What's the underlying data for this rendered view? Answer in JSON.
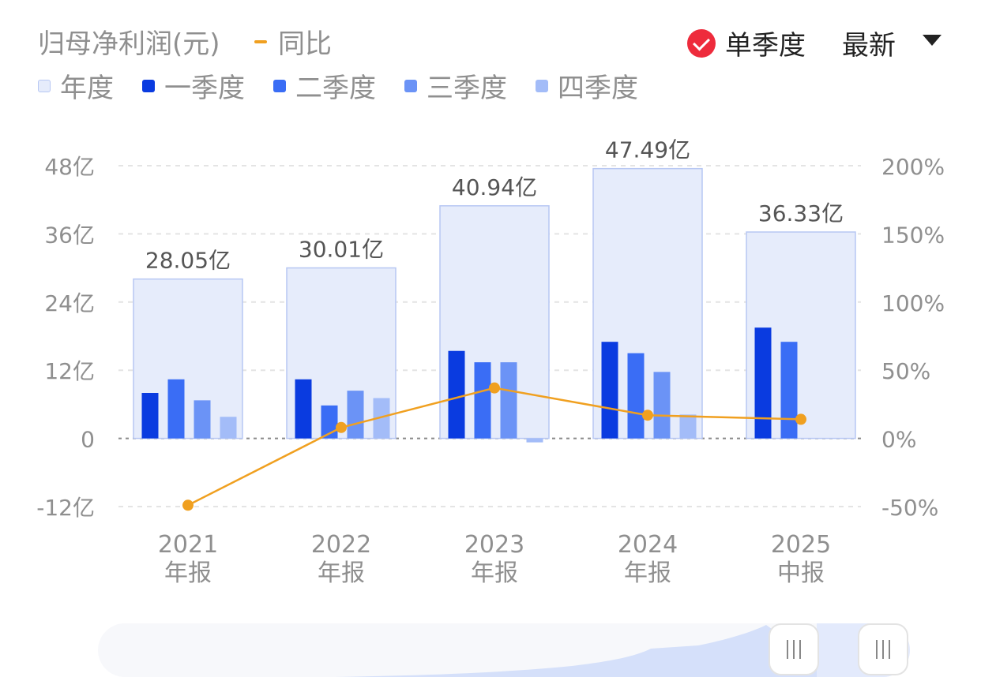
{
  "header": {
    "title": "归母净利润(元)",
    "yoy_label": "同比",
    "season_toggle": "单季度",
    "sort_select": "最新"
  },
  "legend": [
    {
      "label": "年度",
      "color": "#e6ecfb"
    },
    {
      "label": "一季度",
      "color": "#0a3be0"
    },
    {
      "label": "二季度",
      "color": "#3a6df5"
    },
    {
      "label": "三季度",
      "color": "#6b93f6"
    },
    {
      "label": "四季度",
      "color": "#a3bcf8"
    }
  ],
  "colors": {
    "annual_fill": "#e6ecfb",
    "annual_stroke": "#b7c7f3",
    "q1": "#0a3be0",
    "q2": "#3a6df5",
    "q3": "#6b93f6",
    "q4": "#a3bcf8",
    "yoy": "#f0a020"
  },
  "chart_data": {
    "type": "bar",
    "categories": [
      {
        "year": "2021",
        "period": "年报"
      },
      {
        "year": "2022",
        "period": "年报"
      },
      {
        "year": "2023",
        "period": "年报"
      },
      {
        "year": "2024",
        "period": "年报"
      },
      {
        "year": "2025",
        "period": "中报"
      }
    ],
    "annual": [
      28.05,
      30.01,
      40.94,
      47.49,
      36.33
    ],
    "annual_labels": [
      "28.05亿",
      "30.01亿",
      "40.94亿",
      "47.49亿",
      "36.33亿"
    ],
    "series": [
      {
        "name": "一季度",
        "values": [
          8.0,
          10.4,
          15.4,
          17.0,
          19.5
        ]
      },
      {
        "name": "二季度",
        "values": [
          10.4,
          5.8,
          13.4,
          15.0,
          17.0
        ]
      },
      {
        "name": "三季度",
        "values": [
          6.7,
          8.4,
          13.4,
          11.7,
          null
        ]
      },
      {
        "name": "四季度",
        "values": [
          3.8,
          7.1,
          -0.7,
          4.2,
          null
        ]
      }
    ],
    "yoy": [
      -49,
      8,
      37,
      17,
      14
    ],
    "y_left": {
      "ticks": [
        "48亿",
        "36亿",
        "24亿",
        "12亿",
        "0",
        "-12亿"
      ],
      "values": [
        48,
        36,
        24,
        12,
        0,
        -12
      ],
      "min": -12,
      "max": 48
    },
    "y_right": {
      "ticks": [
        "200%",
        "150%",
        "100%",
        "50%",
        "0%",
        "-50%"
      ],
      "values": [
        200,
        150,
        100,
        50,
        0,
        -50
      ],
      "min": -50,
      "max": 200
    },
    "grid": true
  }
}
